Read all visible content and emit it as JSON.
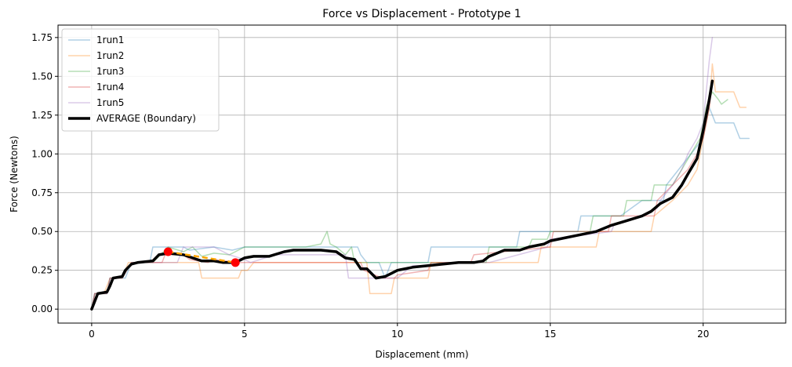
{
  "chart_data": {
    "type": "line",
    "title": "Force vs Displacement - Prototype 1",
    "xlabel": "Displacement (mm)",
    "ylabel": "Force (Newtons)",
    "xlim": [
      -1.1,
      22.7
    ],
    "ylim": [
      -0.09,
      1.83
    ],
    "xticks": [
      0,
      5,
      10,
      15,
      20
    ],
    "yticks": [
      0.0,
      0.25,
      0.5,
      0.75,
      1.0,
      1.25,
      1.5,
      1.75
    ],
    "xtick_labels": [
      "0",
      "5",
      "10",
      "15",
      "20"
    ],
    "ytick_labels": [
      "0.00",
      "0.25",
      "0.50",
      "0.75",
      "1.00",
      "1.25",
      "1.50",
      "1.75"
    ],
    "grid": true,
    "legend_position": "upper-left",
    "series": [
      {
        "name": "1run1",
        "color": "#1f77b4",
        "opacity": 0.35,
        "width": 1.5,
        "x": [
          0,
          0.1,
          0.5,
          0.6,
          1.1,
          1.3,
          1.5,
          1.9,
          2.0,
          3.0,
          3.2,
          4.0,
          4.6,
          5.0,
          5.2,
          8.7,
          8.8,
          9.0,
          9.4,
          9.6,
          9.8,
          10.0,
          11.0,
          11.1,
          13.9,
          14.0,
          15.9,
          16.0,
          17.2,
          17.3,
          18.0,
          18.7,
          18.8,
          19.2,
          19.6,
          19.8,
          20.0,
          20.2,
          20.4,
          20.6,
          21.0,
          21.2,
          21.5
        ],
        "y": [
          0,
          0.1,
          0.1,
          0.2,
          0.2,
          0.3,
          0.3,
          0.3,
          0.4,
          0.4,
          0.38,
          0.4,
          0.38,
          0.4,
          0.4,
          0.4,
          0.35,
          0.3,
          0.3,
          0.2,
          0.3,
          0.3,
          0.3,
          0.4,
          0.4,
          0.5,
          0.5,
          0.6,
          0.6,
          0.6,
          0.7,
          0.7,
          0.8,
          0.9,
          1.0,
          1.05,
          1.1,
          1.3,
          1.2,
          1.2,
          1.2,
          1.1,
          1.1
        ]
      },
      {
        "name": "1run2",
        "color": "#ff7f0e",
        "opacity": 0.35,
        "width": 1.5,
        "x": [
          0,
          0.1,
          0.4,
          0.6,
          1.0,
          1.2,
          2.0,
          3.0,
          3.5,
          3.6,
          4.8,
          4.9,
          5.1,
          5.3,
          6.0,
          8.4,
          8.5,
          9.0,
          9.1,
          9.8,
          9.9,
          10.0,
          11.0,
          11.1,
          14.6,
          14.7,
          16.5,
          16.6,
          18.3,
          18.4,
          19.0,
          19.5,
          19.8,
          20.0,
          20.2,
          20.3,
          20.4,
          21.0,
          21.2,
          21.4
        ],
        "y": [
          0,
          0.1,
          0.1,
          0.2,
          0.2,
          0.3,
          0.3,
          0.3,
          0.3,
          0.2,
          0.2,
          0.25,
          0.25,
          0.3,
          0.3,
          0.3,
          0.3,
          0.3,
          0.1,
          0.1,
          0.2,
          0.2,
          0.2,
          0.3,
          0.3,
          0.4,
          0.4,
          0.5,
          0.5,
          0.6,
          0.7,
          0.8,
          0.9,
          1.1,
          1.3,
          1.58,
          1.4,
          1.4,
          1.3,
          1.3
        ]
      },
      {
        "name": "1run3",
        "color": "#2ca02c",
        "opacity": 0.35,
        "width": 1.5,
        "x": [
          0,
          0.1,
          0.5,
          0.6,
          1.0,
          1.3,
          2.0,
          2.5,
          3.0,
          3.3,
          3.6,
          4.0,
          4.5,
          5.0,
          6.0,
          7.0,
          7.5,
          7.7,
          7.8,
          8.0,
          8.3,
          8.5,
          8.6,
          9.0,
          9.8,
          10.0,
          11.0,
          11.1,
          12.9,
          13.0,
          14.3,
          14.4,
          14.9,
          15.0,
          16.3,
          16.4,
          17.4,
          17.5,
          18.3,
          18.4,
          19.0,
          19.3,
          19.6,
          19.9,
          20.1,
          20.3,
          20.5,
          20.6,
          20.8
        ],
        "y": [
          0,
          0.1,
          0.1,
          0.2,
          0.2,
          0.3,
          0.3,
          0.4,
          0.37,
          0.4,
          0.34,
          0.36,
          0.35,
          0.4,
          0.4,
          0.4,
          0.42,
          0.5,
          0.42,
          0.4,
          0.35,
          0.4,
          0.3,
          0.3,
          0.3,
          0.3,
          0.3,
          0.3,
          0.3,
          0.4,
          0.4,
          0.45,
          0.45,
          0.5,
          0.5,
          0.6,
          0.6,
          0.7,
          0.7,
          0.8,
          0.8,
          0.9,
          1.0,
          1.1,
          1.3,
          1.4,
          1.35,
          1.32,
          1.35
        ]
      },
      {
        "name": "1run4",
        "color": "#d62728",
        "opacity": 0.35,
        "width": 1.5,
        "x": [
          0,
          0.1,
          0.5,
          0.6,
          1.0,
          1.3,
          2.3,
          2.4,
          3.0,
          3.2,
          3.8,
          4.0,
          4.8,
          5.0,
          6.0,
          8.8,
          8.9,
          9.5,
          9.6,
          9.9,
          10.0,
          11.0,
          11.1,
          12.4,
          12.5,
          15.0,
          15.1,
          16.9,
          17.0,
          18.4,
          18.5,
          19.0,
          19.5,
          19.8,
          20.0,
          20.2,
          20.3
        ],
        "y": [
          0,
          0.1,
          0.1,
          0.2,
          0.2,
          0.3,
          0.3,
          0.35,
          0.35,
          0.32,
          0.3,
          0.32,
          0.3,
          0.3,
          0.3,
          0.3,
          0.25,
          0.2,
          0.2,
          0.2,
          0.22,
          0.25,
          0.3,
          0.3,
          0.35,
          0.4,
          0.5,
          0.5,
          0.6,
          0.6,
          0.7,
          0.8,
          0.9,
          1.0,
          1.1,
          1.3,
          1.45
        ]
      },
      {
        "name": "1run5",
        "color": "#9467bd",
        "opacity": 0.35,
        "width": 1.5,
        "x": [
          0,
          0.1,
          0.5,
          0.6,
          1.0,
          1.3,
          2.0,
          2.8,
          3.0,
          4.0,
          4.5,
          5.0,
          5.2,
          6.0,
          8.3,
          8.4,
          9.0,
          9.5,
          10.0,
          10.3,
          10.5,
          11.0,
          11.5,
          12.5,
          13.0,
          14.9,
          15.0,
          17.0,
          17.1,
          18.0,
          18.5,
          18.6,
          19.0,
          19.3,
          19.5,
          19.8,
          20.0,
          20.1,
          20.2,
          20.3
        ],
        "y": [
          0,
          0.1,
          0.1,
          0.2,
          0.2,
          0.3,
          0.3,
          0.3,
          0.4,
          0.4,
          0.35,
          0.32,
          0.3,
          0.35,
          0.35,
          0.2,
          0.2,
          0.2,
          0.2,
          0.25,
          0.28,
          0.28,
          0.3,
          0.3,
          0.3,
          0.4,
          0.45,
          0.5,
          0.55,
          0.6,
          0.65,
          0.7,
          0.8,
          0.9,
          1.0,
          1.1,
          1.2,
          1.4,
          1.6,
          1.75
        ]
      },
      {
        "name": "AVERAGE (Boundary)",
        "color": "#000000",
        "opacity": 1.0,
        "width": 3.5,
        "x": [
          0,
          0.1,
          0.2,
          0.5,
          0.6,
          0.7,
          1.0,
          1.1,
          1.3,
          1.5,
          2.0,
          2.2,
          2.5,
          3.0,
          3.3,
          3.6,
          4.0,
          4.3,
          4.7,
          5.0,
          5.3,
          5.8,
          6.3,
          6.6,
          7.0,
          7.5,
          8.0,
          8.3,
          8.6,
          8.8,
          9.0,
          9.3,
          9.6,
          9.8,
          10.0,
          10.5,
          11.0,
          11.5,
          12.0,
          12.5,
          12.8,
          13.0,
          13.5,
          14.0,
          14.3,
          14.8,
          15.0,
          15.5,
          16.0,
          16.5,
          17.0,
          17.5,
          18.0,
          18.3,
          18.6,
          19.0,
          19.3,
          19.5,
          19.8,
          20.0,
          20.2,
          20.3
        ],
        "y": [
          0,
          0.05,
          0.1,
          0.11,
          0.15,
          0.2,
          0.21,
          0.25,
          0.29,
          0.3,
          0.31,
          0.35,
          0.36,
          0.35,
          0.33,
          0.31,
          0.31,
          0.3,
          0.3,
          0.33,
          0.34,
          0.34,
          0.37,
          0.38,
          0.38,
          0.38,
          0.37,
          0.33,
          0.32,
          0.26,
          0.26,
          0.2,
          0.21,
          0.23,
          0.25,
          0.27,
          0.28,
          0.29,
          0.3,
          0.3,
          0.31,
          0.34,
          0.38,
          0.38,
          0.4,
          0.42,
          0.44,
          0.46,
          0.48,
          0.5,
          0.54,
          0.57,
          0.6,
          0.63,
          0.68,
          0.72,
          0.8,
          0.87,
          0.97,
          1.15,
          1.35,
          1.47
        ]
      }
    ],
    "annotation": {
      "x": [
        2.5,
        4.7
      ],
      "y": [
        0.37,
        0.3
      ],
      "line_color": "#ffa500",
      "marker_color": "#ff0000"
    }
  }
}
